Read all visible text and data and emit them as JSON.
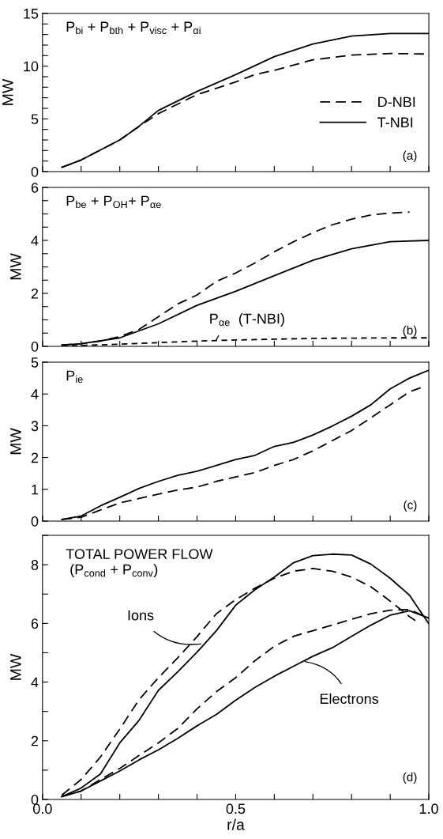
{
  "chart_data": [
    {
      "type": "line",
      "title": "P$_{bi}$ + P$_{bth}$ + P$_{visc}$ + P$_{αi}$",
      "ylabel": "MW",
      "xlim": [
        0,
        1
      ],
      "ylim": [
        0,
        15
      ],
      "xticks": [
        {
          "value": 0,
          "label": null
        },
        {
          "value": 0.1,
          "label": null
        },
        {
          "value": 0.2,
          "label": null
        },
        {
          "value": 0.3,
          "label": null
        },
        {
          "value": 0.4,
          "label": null
        },
        {
          "value": 0.5,
          "label": null
        },
        {
          "value": 0.6,
          "label": null
        },
        {
          "value": 0.7,
          "label": null
        },
        {
          "value": 0.8,
          "label": null
        },
        {
          "value": 0.9,
          "label": null
        },
        {
          "value": 1,
          "label": null
        }
      ],
      "yticks": [
        0,
        {
          "value": 1,
          "label": null
        },
        {
          "value": 2,
          "label": null
        },
        {
          "value": 3,
          "label": null
        },
        {
          "value": 4,
          "label": null
        },
        5,
        {
          "value": 6,
          "label": null
        },
        {
          "value": 7,
          "label": null
        },
        {
          "value": 8,
          "label": null
        },
        {
          "value": 9,
          "label": null
        },
        10,
        {
          "value": 11,
          "label": null
        },
        {
          "value": 12,
          "label": null
        },
        {
          "value": 13,
          "label": null
        },
        {
          "value": 14,
          "label": null
        },
        15
      ],
      "tick_labels": "y",
      "legend": "right",
      "grid": false,
      "annotations": [
        "(a)"
      ],
      "series": [
        {
          "name": "D-NBI",
          "color": "#000000",
          "line_style": "dashed",
          "x": [
            0.05,
            0.1,
            0.2,
            0.25,
            0.3,
            0.4,
            0.5,
            0.55,
            0.6,
            0.7,
            0.8,
            0.9,
            1.0
          ],
          "values": [
            0.4,
            1.1,
            3.0,
            4.3,
            5.5,
            7.3,
            8.5,
            9.2,
            9.6,
            10.6,
            11.05,
            11.2,
            11.15
          ]
        },
        {
          "name": "T-NBI",
          "color": "#000000",
          "line_style": "solid",
          "x": [
            0.05,
            0.1,
            0.2,
            0.25,
            0.3,
            0.4,
            0.5,
            0.6,
            0.7,
            0.8,
            0.9,
            1.0
          ],
          "values": [
            0.4,
            1.1,
            3.0,
            4.3,
            5.8,
            7.6,
            9.2,
            10.9,
            12.1,
            12.85,
            13.1,
            13.1
          ]
        }
      ]
    },
    {
      "type": "line",
      "title": "P$_{be}$ + P$_{OH}$+ P$_{αe}$",
      "ylabel": "MW",
      "xlim": [
        0,
        1
      ],
      "ylim": [
        0,
        6
      ],
      "xticks": [
        {
          "value": 0,
          "label": null
        },
        {
          "value": 0.1,
          "label": null
        },
        {
          "value": 0.2,
          "label": null
        },
        {
          "value": 0.3,
          "label": null
        },
        {
          "value": 0.4,
          "label": null
        },
        {
          "value": 0.5,
          "label": null
        },
        {
          "value": 0.6,
          "label": null
        },
        {
          "value": 0.7,
          "label": null
        },
        {
          "value": 0.8,
          "label": null
        },
        {
          "value": 0.9,
          "label": null
        },
        {
          "value": 1,
          "label": null
        }
      ],
      "yticks": [
        0,
        {
          "value": 0.5,
          "label": null
        },
        {
          "value": 1,
          "label": null
        },
        {
          "value": 1.5,
          "label": null
        },
        2,
        {
          "value": 2.5,
          "label": null
        },
        {
          "value": 3,
          "label": null
        },
        {
          "value": 3.5,
          "label": null
        },
        4,
        {
          "value": 4.5,
          "label": null
        },
        {
          "value": 5,
          "label": null
        },
        {
          "value": 5.5,
          "label": null
        },
        6
      ],
      "tick_labels": "y",
      "grid": false,
      "annotations": [
        {
          "text": "P$_{αe}$  (T-NBI)",
          "x": 0.45,
          "y": 0.25
        },
        "(b)"
      ],
      "series": [
        {
          "color": "#000000",
          "line_style": "dashed",
          "x": [
            0.05,
            0.1,
            0.15,
            0.2,
            0.25,
            0.3,
            0.35,
            0.4,
            0.45,
            0.5,
            0.55,
            0.6,
            0.65,
            0.7,
            0.75,
            0.8,
            0.85,
            0.9,
            0.95
          ],
          "values": [
            0.05,
            0.1,
            0.2,
            0.37,
            0.64,
            1.12,
            1.6,
            1.94,
            2.45,
            2.77,
            3.15,
            3.57,
            3.95,
            4.29,
            4.59,
            4.8,
            4.96,
            5.03,
            5.07
          ]
        },
        {
          "color": "#000000",
          "line_style": "solid",
          "x": [
            0.05,
            0.1,
            0.2,
            0.3,
            0.4,
            0.5,
            0.6,
            0.7,
            0.8,
            0.9,
            1.0
          ],
          "values": [
            0.05,
            0.1,
            0.32,
            0.85,
            1.55,
            2.08,
            2.67,
            3.25,
            3.68,
            3.95,
            4.0
          ]
        },
        {
          "color": "#000000",
          "line_style": "dotted",
          "x": [
            0.05,
            0.1,
            0.2,
            0.3,
            0.4,
            0.5,
            0.6,
            0.7,
            0.8,
            0.9,
            1.0
          ],
          "values": [
            0.02,
            0.03,
            0.08,
            0.14,
            0.2,
            0.24,
            0.27,
            0.3,
            0.31,
            0.32,
            0.32
          ]
        }
      ]
    },
    {
      "type": "line",
      "title": "P$_{ie}$",
      "ylabel": "MW",
      "xlim": [
        0,
        1
      ],
      "ylim": [
        0,
        5
      ],
      "xticks": [
        {
          "value": 0,
          "label": null
        },
        {
          "value": 0.1,
          "label": null
        },
        {
          "value": 0.2,
          "label": null
        },
        {
          "value": 0.3,
          "label": null
        },
        {
          "value": 0.4,
          "label": null
        },
        {
          "value": 0.5,
          "label": null
        },
        {
          "value": 0.6,
          "label": null
        },
        {
          "value": 0.7,
          "label": null
        },
        {
          "value": 0.8,
          "label": null
        },
        {
          "value": 0.9,
          "label": null
        },
        {
          "value": 1,
          "label": null
        }
      ],
      "yticks": [
        0,
        1,
        2,
        3,
        4,
        5
      ],
      "tick_labels": "y",
      "grid": false,
      "annotations": [
        "(c)"
      ],
      "series": [
        {
          "color": "#000000",
          "line_style": "solid",
          "x": [
            0.05,
            0.1,
            0.15,
            0.2,
            0.25,
            0.3,
            0.35,
            0.4,
            0.45,
            0.5,
            0.55,
            0.6,
            0.65,
            0.7,
            0.75,
            0.8,
            0.85,
            0.9,
            0.95,
            1.0
          ],
          "values": [
            0.05,
            0.16,
            0.48,
            0.75,
            1.03,
            1.25,
            1.44,
            1.57,
            1.75,
            1.94,
            2.07,
            2.35,
            2.48,
            2.71,
            2.99,
            3.3,
            3.66,
            4.16,
            4.5,
            4.75
          ]
        },
        {
          "color": "#000000",
          "line_style": "dashed",
          "x": [
            0.05,
            0.1,
            0.15,
            0.2,
            0.25,
            0.3,
            0.35,
            0.4,
            0.45,
            0.5,
            0.55,
            0.6,
            0.65,
            0.7,
            0.75,
            0.8,
            0.85,
            0.9,
            0.95,
            0.98
          ],
          "values": [
            0.05,
            0.12,
            0.35,
            0.57,
            0.71,
            0.85,
            0.98,
            1.07,
            1.25,
            1.39,
            1.53,
            1.75,
            1.94,
            2.21,
            2.53,
            2.85,
            3.25,
            3.66,
            4.07,
            4.2
          ]
        }
      ]
    },
    {
      "type": "line",
      "title": "TOTAL POWER FLOW\n (P$_{cond}$ + P$_{conv}$)",
      "xlabel": "r/a",
      "ylabel": "MW",
      "xlim": [
        0,
        1
      ],
      "ylim": [
        0,
        9
      ],
      "xticks": [
        {
          "value": 0,
          "label": "0.0"
        },
        {
          "value": 0.1,
          "label": null
        },
        {
          "value": 0.2,
          "label": null
        },
        {
          "value": 0.3,
          "label": null
        },
        {
          "value": 0.4,
          "label": null
        },
        {
          "value": 0.5,
          "label": "0.5"
        },
        {
          "value": 0.6,
          "label": null
        },
        {
          "value": 0.7,
          "label": null
        },
        {
          "value": 0.8,
          "label": null
        },
        {
          "value": 0.9,
          "label": null
        },
        {
          "value": 1,
          "label": "1.0"
        }
      ],
      "yticks": [
        0,
        {
          "value": 1,
          "label": null
        },
        2,
        {
          "value": 3,
          "label": null
        },
        4,
        {
          "value": 5,
          "label": null
        },
        6,
        {
          "value": 7,
          "label": null
        },
        8,
        {
          "value": 9,
          "label": null
        }
      ],
      "grid": false,
      "annotations": [
        {
          "text": "Ions",
          "x": 0.41,
          "y": 5.3
        },
        {
          "text": "Electrons",
          "x": 0.68,
          "y": 4.7
        },
        "(d)"
      ],
      "series": [
        {
          "color": "#000000",
          "line_style": "dashed",
          "x": [
            0.05,
            0.1,
            0.15,
            0.2,
            0.25,
            0.3,
            0.35,
            0.4,
            0.45,
            0.5,
            0.55,
            0.6,
            0.65,
            0.7,
            0.75,
            0.8,
            0.85,
            0.9,
            0.95,
            0.965
          ],
          "values": [
            0.15,
            0.68,
            1.45,
            2.4,
            3.4,
            4.15,
            4.83,
            5.55,
            6.33,
            6.81,
            7.2,
            7.54,
            7.78,
            7.87,
            7.78,
            7.58,
            7.25,
            6.76,
            6.23,
            6.1
          ]
        },
        {
          "color": "#000000",
          "line_style": "solid",
          "x": [
            0.05,
            0.1,
            0.15,
            0.2,
            0.25,
            0.3,
            0.35,
            0.4,
            0.45,
            0.5,
            0.55,
            0.6,
            0.65,
            0.7,
            0.75,
            0.8,
            0.85,
            0.9,
            0.95,
            0.97,
            1.0
          ],
          "values": [
            0.1,
            0.39,
            0.87,
            1.93,
            2.7,
            3.72,
            4.35,
            5.02,
            5.75,
            6.62,
            7.15,
            7.58,
            8.07,
            8.31,
            8.36,
            8.33,
            8.02,
            7.54,
            6.96,
            6.57,
            5.99
          ]
        },
        {
          "color": "#000000",
          "line_style": "dashed",
          "x": [
            0.05,
            0.1,
            0.15,
            0.2,
            0.25,
            0.3,
            0.35,
            0.4,
            0.45,
            0.5,
            0.55,
            0.6,
            0.65,
            0.7,
            0.75,
            0.8,
            0.85,
            0.9,
            0.95,
            1.0
          ],
          "values": [
            0.1,
            0.29,
            0.68,
            1.06,
            1.5,
            1.93,
            2.42,
            3.09,
            3.67,
            4.15,
            4.73,
            5.22,
            5.56,
            5.75,
            5.94,
            6.14,
            6.33,
            6.45,
            6.47,
            6.18
          ]
        },
        {
          "color": "#000000",
          "line_style": "solid",
          "x": [
            0.05,
            0.1,
            0.15,
            0.2,
            0.25,
            0.3,
            0.35,
            0.4,
            0.45,
            0.5,
            0.55,
            0.6,
            0.65,
            0.7,
            0.75,
            0.8,
            0.85,
            0.9,
            0.95,
            1.0
          ],
          "values": [
            0.1,
            0.29,
            0.63,
            0.97,
            1.35,
            1.69,
            2.08,
            2.51,
            2.9,
            3.38,
            3.82,
            4.2,
            4.54,
            4.88,
            5.17,
            5.56,
            5.94,
            6.28,
            6.43,
            6.18
          ]
        }
      ]
    }
  ]
}
